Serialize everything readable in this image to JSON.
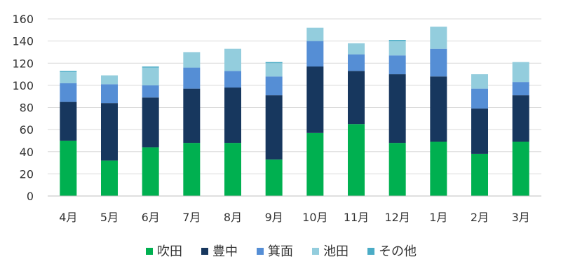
{
  "chart_data": {
    "type": "bar",
    "stacked": true,
    "categories": [
      "4月",
      "5月",
      "6月",
      "7月",
      "8月",
      "9月",
      "10月",
      "11月",
      "12月",
      "1月",
      "2月",
      "3月"
    ],
    "series": [
      {
        "name": "吹田",
        "color": "#00B050",
        "values": [
          50,
          32,
          44,
          48,
          48,
          33,
          57,
          65,
          48,
          49,
          38,
          49
        ]
      },
      {
        "name": "豊中",
        "color": "#17375E",
        "values": [
          35,
          52,
          45,
          49,
          50,
          58,
          60,
          48,
          62,
          59,
          41,
          42
        ]
      },
      {
        "name": "箕面",
        "color": "#558ED5",
        "values": [
          17,
          17,
          11,
          19,
          15,
          17,
          23,
          15,
          17,
          25,
          18,
          12
        ]
      },
      {
        "name": "池田",
        "color": "#93CDDD",
        "values": [
          10,
          8,
          16,
          14,
          20,
          12,
          12,
          10,
          13,
          20,
          13,
          18
        ]
      },
      {
        "name": "その他",
        "color": "#4BACC6",
        "values": [
          1,
          0,
          1,
          0,
          0,
          1,
          0,
          0,
          1,
          0,
          0,
          0
        ]
      }
    ],
    "ylim": [
      0,
      160
    ],
    "yticks": [
      0,
      20,
      40,
      60,
      80,
      100,
      120,
      140,
      160
    ],
    "grid": true,
    "legend_position": "bottom"
  }
}
